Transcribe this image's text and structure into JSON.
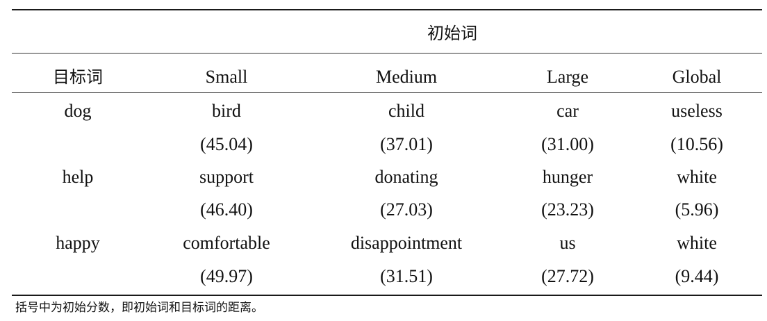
{
  "table": {
    "group_header": "初始词",
    "columns": [
      "目标词",
      "Small",
      "Medium",
      "Large",
      "Global"
    ],
    "rows": [
      {
        "target": "dog",
        "words": [
          "bird",
          "child",
          "car",
          "useless"
        ],
        "scores": [
          "(45.04)",
          "(37.01)",
          "(31.00)",
          "(10.56)"
        ]
      },
      {
        "target": "help",
        "words": [
          "support",
          "donating",
          "hunger",
          "white"
        ],
        "scores": [
          "(46.40)",
          "(27.03)",
          "(23.23)",
          "(5.96)"
        ]
      },
      {
        "target": "happy",
        "words": [
          "comfortable",
          "disappointment",
          "us",
          "white"
        ],
        "scores": [
          "(49.97)",
          "(31.51)",
          "(27.72)",
          "(9.44)"
        ]
      }
    ]
  },
  "footnote": "括号中为初始分数，即初始词和目标词的距离。"
}
